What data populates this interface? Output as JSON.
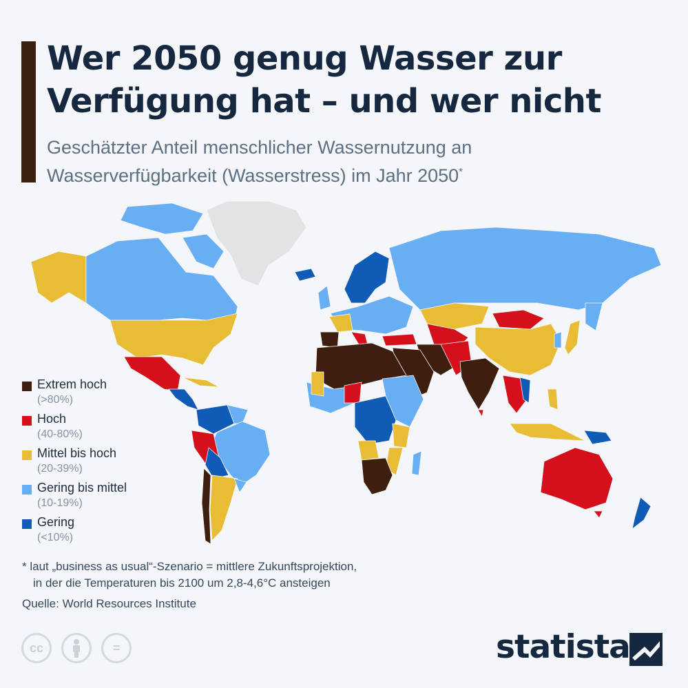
{
  "title_line1": "Wer 2050 genug Wasser zur",
  "title_line2": "Verfügung hat – und wer nicht",
  "subtitle_line1": "Geschätzter Anteil menschlicher Wassernutzung an",
  "subtitle_line2": "Wasserverfügbarkeit (Wasserstress) im Jahr 2050",
  "subtitle_mark": "*",
  "colors": {
    "extreme": "#3e1e0f",
    "high": "#d4111b",
    "medium_high": "#e8bd35",
    "low_medium": "#67aef2",
    "low": "#0f5bb5",
    "no_data": "#e2e3e5"
  },
  "legend": [
    {
      "label": "Extrem hoch",
      "range": "(>80%)",
      "color_key": "extreme"
    },
    {
      "label": "Hoch",
      "range": "(40-80%)",
      "color_key": "high"
    },
    {
      "label": "Mittel bis hoch",
      "range": "(20-39%)",
      "color_key": "medium_high"
    },
    {
      "label": "Gering bis mittel",
      "range": "(10-19%)",
      "color_key": "low_medium"
    },
    {
      "label": "Gering",
      "range": "(<10%)",
      "color_key": "low"
    }
  ],
  "footnote_line1": "* laut „business as usual“-Szenario = mittlere Zukunftsprojektion,",
  "footnote_line2": "in der die Temperaturen bis 2100 um 2,8-4,6°C ansteigen",
  "source": "Quelle: World Resources Institute",
  "license_icons": [
    "cc-icon",
    "attribution-icon",
    "no-derivatives-icon"
  ],
  "brand": "statista"
}
